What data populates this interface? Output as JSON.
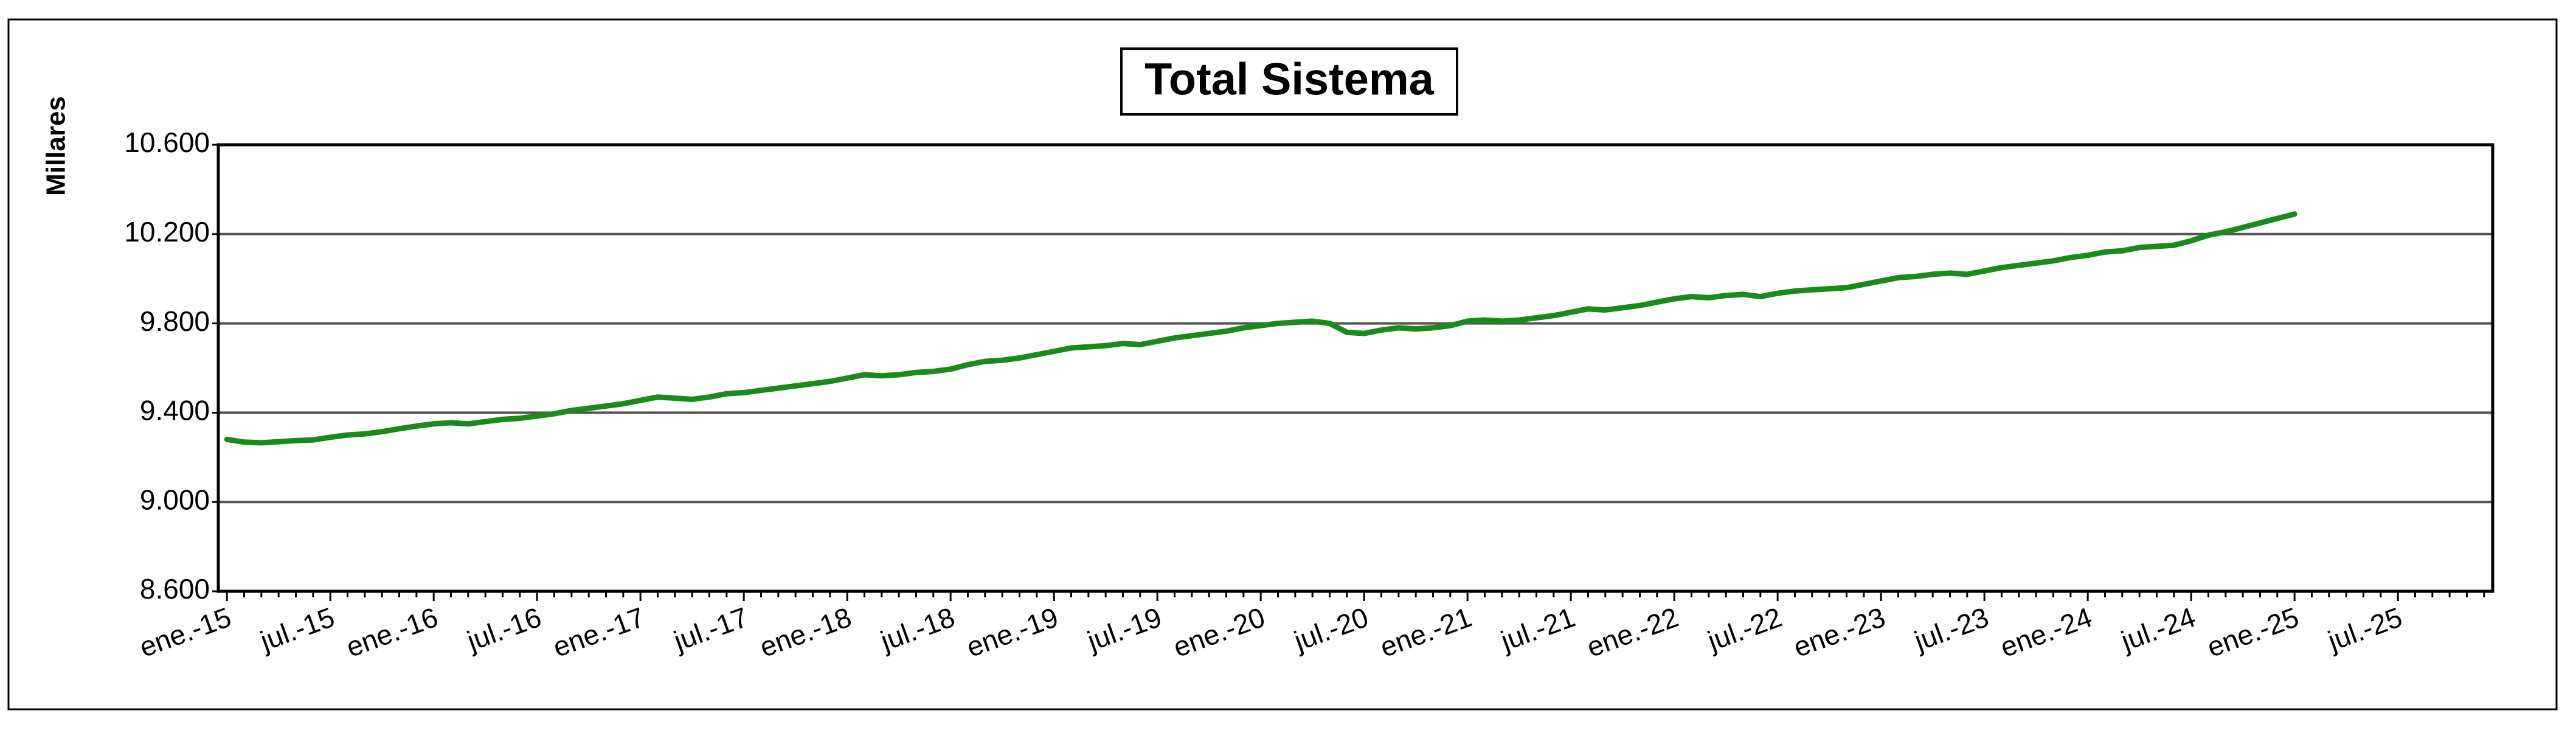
{
  "chart_data": {
    "type": "line",
    "title": "Total Sistema",
    "y_label": "Millares",
    "categories": [
      "ene.-15",
      null,
      null,
      null,
      null,
      null,
      "jul.-15",
      null,
      null,
      null,
      null,
      null,
      "ene.-16",
      null,
      null,
      null,
      null,
      null,
      "jul.-16",
      null,
      null,
      null,
      null,
      null,
      "ene.-17",
      null,
      null,
      null,
      null,
      null,
      "jul.-17",
      null,
      null,
      null,
      null,
      null,
      "ene.-18",
      null,
      null,
      null,
      null,
      null,
      "jul.-18",
      null,
      null,
      null,
      null,
      null,
      "ene.-19",
      null,
      null,
      null,
      null,
      null,
      "jul.-19",
      null,
      null,
      null,
      null,
      null,
      "ene.-20",
      null,
      null,
      null,
      null,
      null,
      "jul.-20",
      null,
      null,
      null,
      null,
      null,
      "ene.-21",
      null,
      null,
      null,
      null,
      null,
      "jul.-21",
      null,
      null,
      null,
      null,
      null,
      "ene.-22",
      null,
      null,
      null,
      null,
      null,
      "jul.-22",
      null,
      null,
      null,
      null,
      null,
      "ene.-23",
      null,
      null,
      null,
      null,
      null,
      "jul.-23",
      null,
      null,
      null,
      null,
      null,
      "ene.-24",
      null,
      null,
      null,
      null,
      null,
      "jul.-24",
      null,
      null,
      null,
      null,
      null,
      "ene.-25",
      null,
      null,
      null,
      null,
      null,
      "jul.-25",
      null,
      null,
      null,
      null,
      null
    ],
    "series": [
      {
        "color": "#1a8a1a",
        "values": [
          9280,
          9268,
          9265,
          9270,
          9275,
          9278,
          9290,
          9300,
          9305,
          9315,
          9328,
          9340,
          9350,
          9355,
          9350,
          9360,
          9370,
          9375,
          9385,
          9395,
          9410,
          9420,
          9430,
          9440,
          9455,
          9470,
          9465,
          9460,
          9470,
          9485,
          9490,
          9500,
          9510,
          9520,
          9530,
          9540,
          9555,
          9570,
          9565,
          9570,
          9580,
          9585,
          9595,
          9615,
          9630,
          9635,
          9645,
          9660,
          9675,
          9690,
          9695,
          9700,
          9710,
          9705,
          9720,
          9735,
          9745,
          9755,
          9765,
          9780,
          9790,
          9800,
          9805,
          9810,
          9800,
          9760,
          9755,
          9770,
          9780,
          9775,
          9780,
          9790,
          9810,
          9815,
          9810,
          9815,
          9825,
          9835,
          9850,
          9865,
          9860,
          9870,
          9880,
          9895,
          9910,
          9920,
          9915,
          9925,
          9930,
          9920,
          9935,
          9945,
          9950,
          9955,
          9960,
          9975,
          9990,
          10005,
          10010,
          10020,
          10025,
          10020,
          10035,
          10050,
          10060,
          10070,
          10080,
          10095,
          10105,
          10120,
          10125,
          10140,
          10145,
          10150,
          10170,
          10195,
          10210,
          10230,
          10250,
          10270,
          10290,
          null,
          null,
          null,
          null,
          null,
          null,
          null,
          null,
          null,
          null,
          null
        ]
      }
    ],
    "ylim": [
      8600,
      10600
    ],
    "yticks": [
      {
        "value": 8600,
        "label": "8.600"
      },
      {
        "value": 9000,
        "label": "9.000"
      },
      {
        "value": 9400,
        "label": "9.400"
      },
      {
        "value": 9800,
        "label": "9.800"
      },
      {
        "value": 10200,
        "label": "10.200"
      },
      {
        "value": 10600,
        "label": "10.600"
      }
    ],
    "grid": true
  }
}
